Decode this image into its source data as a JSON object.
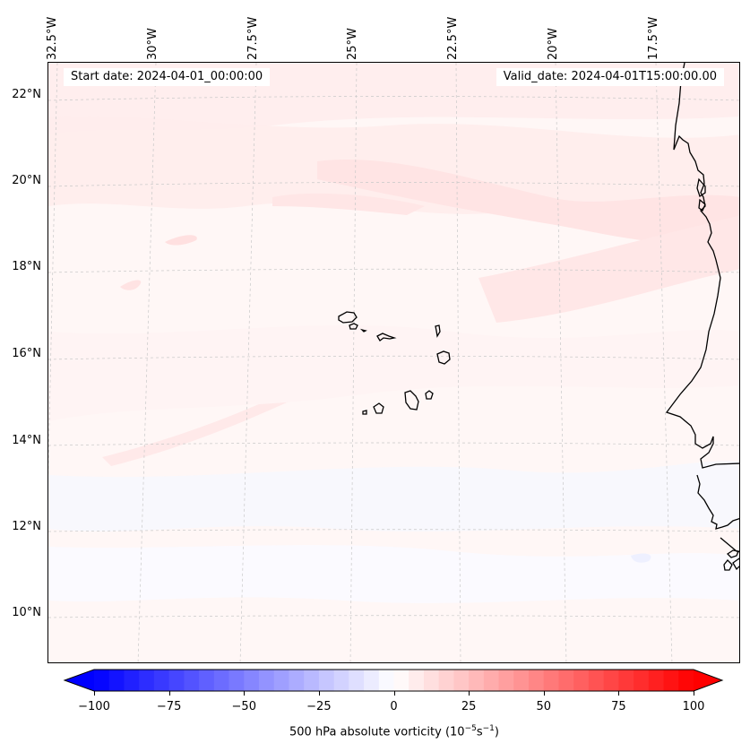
{
  "map": {
    "start_date_label": "Start date: 2024-04-01_00:00:00",
    "valid_date_label": "Valid_date: 2024-04-01T15:00:00.00",
    "lon_labels": [
      "32.5°W",
      "30°W",
      "27.5°W",
      "25°W",
      "22.5°W",
      "20°W",
      "17.5°W"
    ],
    "lat_labels": [
      "22°N",
      "20°N",
      "18°N",
      "16°N",
      "14°N",
      "12°N",
      "10°N"
    ],
    "features": [
      "cabo-verde-islands",
      "west-africa-coastline",
      "gridlines"
    ],
    "field_colors": {
      "positive": "#ff0000",
      "negative": "#0000ff",
      "neutral": "#ffffff"
    }
  },
  "colorbar": {
    "label": "500 hPa absolute vorticity (10",
    "label_sup1": "−5",
    "label_mid": "s",
    "label_sup2": "−1",
    "label_end": ")",
    "ticks": [
      "−100",
      "−75",
      "−50",
      "−25",
      "0",
      "25",
      "50",
      "75",
      "100"
    ],
    "vmin": -100,
    "vmax": 100,
    "levels": 40,
    "extend": "both",
    "cmap": "bwr"
  }
}
